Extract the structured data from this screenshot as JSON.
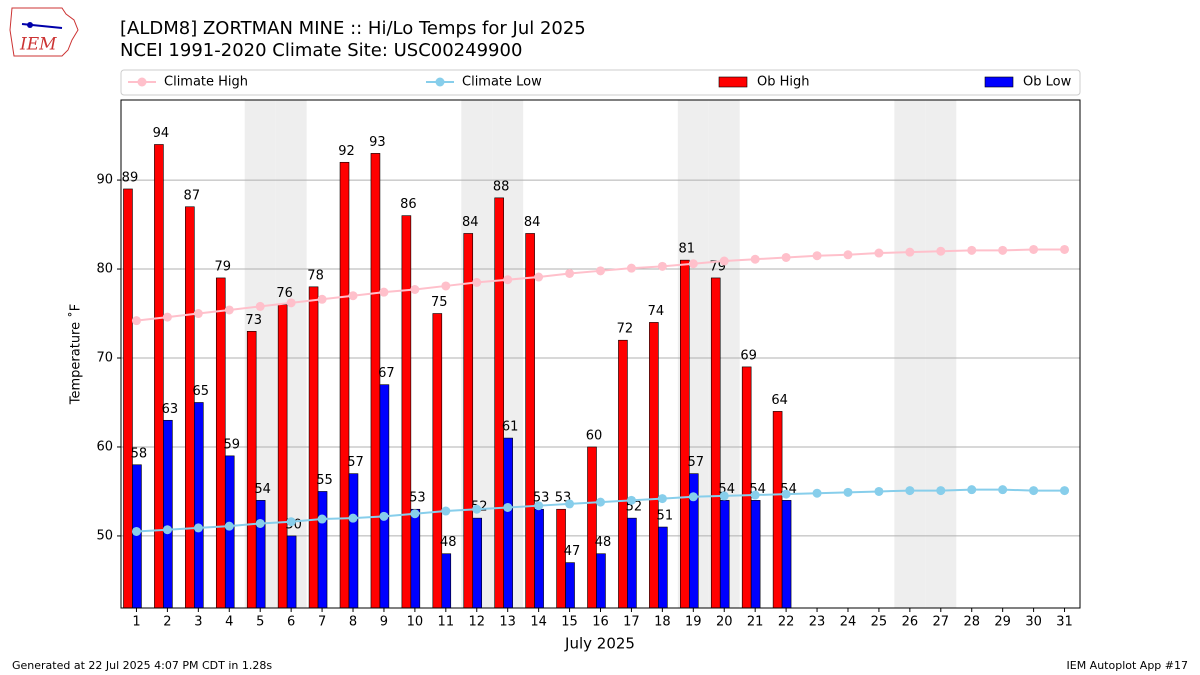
{
  "chart_data": {
    "type": "bar_line",
    "title": "[ALDM8] ZORTMAN MINE :: Hi/Lo Temps for Jul 2025",
    "subtitle": "NCEI 1991-2020 Climate Site: USC00249900",
    "logo_text": "IEM",
    "xlabel": "July 2025",
    "ylabel": "Temperature ˚F",
    "footer_left": "Generated at 22 Jul 2025 4:07 PM CDT in 1.28s",
    "footer_right": "IEM Autoplot App #17",
    "x": [
      1,
      2,
      3,
      4,
      5,
      6,
      7,
      8,
      9,
      10,
      11,
      12,
      13,
      14,
      15,
      16,
      17,
      18,
      19,
      20,
      21,
      22,
      23,
      24,
      25,
      26,
      27,
      28,
      29,
      30,
      31
    ],
    "xlim": [
      0.5,
      31.5
    ],
    "xticks": [
      1,
      2,
      3,
      4,
      5,
      6,
      7,
      8,
      9,
      10,
      11,
      12,
      13,
      14,
      15,
      16,
      17,
      18,
      19,
      20,
      21,
      22,
      23,
      24,
      25,
      26,
      27,
      28,
      29,
      30,
      31
    ],
    "ylim": [
      41.9,
      99
    ],
    "yticks": [
      50,
      60,
      70,
      80,
      90
    ],
    "grid": true,
    "shaded_days": [
      5,
      6,
      12,
      13,
      19,
      20,
      26,
      27
    ],
    "series": [
      {
        "name": "Climate High",
        "color": "#ffc0cb",
        "kind": "line",
        "values": [
          74.2,
          74.6,
          75.0,
          75.4,
          75.8,
          76.2,
          76.6,
          77.0,
          77.4,
          77.7,
          78.1,
          78.5,
          78.8,
          79.1,
          79.5,
          79.8,
          80.1,
          80.3,
          80.6,
          80.9,
          81.1,
          81.3,
          81.5,
          81.6,
          81.8,
          81.9,
          82.0,
          82.1,
          82.1,
          82.2,
          82.2
        ]
      },
      {
        "name": "Climate Low",
        "color": "#87ceeb",
        "kind": "line",
        "values": [
          50.5,
          50.7,
          50.9,
          51.1,
          51.4,
          51.6,
          51.9,
          52.0,
          52.2,
          52.5,
          52.8,
          53.0,
          53.2,
          53.4,
          53.6,
          53.8,
          54.0,
          54.2,
          54.4,
          54.5,
          54.6,
          54.7,
          54.8,
          54.9,
          55.0,
          55.1,
          55.1,
          55.2,
          55.2,
          55.1,
          55.1
        ]
      },
      {
        "name": "Ob High",
        "color": "#ff0000",
        "kind": "bar",
        "values": [
          89,
          94,
          87,
          79,
          73,
          76,
          78,
          92,
          93,
          86,
          75,
          84,
          88,
          84,
          53,
          60,
          72,
          74,
          81,
          79,
          69,
          64,
          null,
          null,
          null,
          null,
          null,
          null,
          null,
          null,
          null
        ]
      },
      {
        "name": "Ob Low",
        "color": "#0000ff",
        "kind": "bar",
        "values": [
          58,
          63,
          65,
          59,
          54,
          50,
          55,
          57,
          67,
          53,
          48,
          52,
          61,
          53,
          47,
          48,
          52,
          51,
          57,
          54,
          54,
          54,
          null,
          null,
          null,
          null,
          null,
          null,
          null,
          null,
          null
        ]
      }
    ]
  }
}
